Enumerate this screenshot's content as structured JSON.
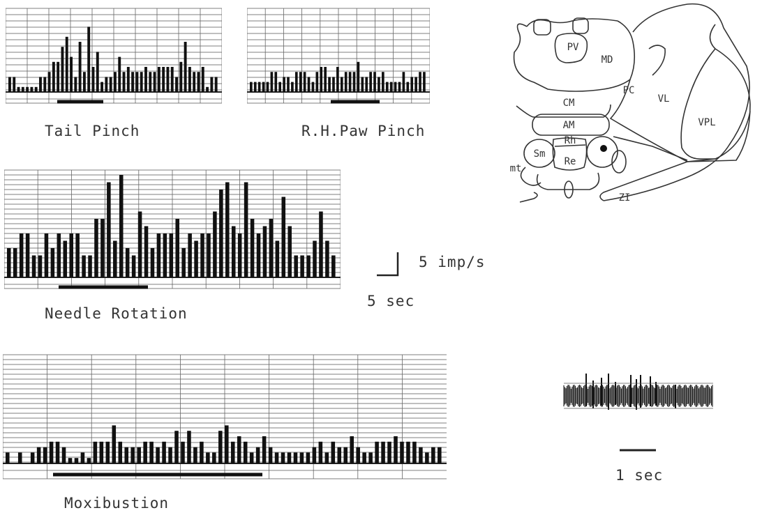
{
  "panels": [
    {
      "id": "tail",
      "label": "Tail Pinch",
      "rates": [
        3,
        3,
        1,
        1,
        1,
        1,
        1,
        3,
        3,
        4,
        6,
        6,
        9,
        11,
        7,
        3,
        10,
        4,
        13,
        5,
        8,
        2,
        3,
        3,
        4,
        7,
        4,
        5,
        4,
        4,
        4,
        5,
        4,
        4,
        5,
        5,
        5,
        5,
        3,
        6,
        10,
        5,
        4,
        4,
        5,
        1,
        3,
        3
      ]
    },
    {
      "id": "paw",
      "label": "R.H.Paw Pinch",
      "rates": [
        2,
        2,
        2,
        2,
        2,
        4,
        4,
        2,
        3,
        3,
        2,
        4,
        4,
        4,
        3,
        2,
        4,
        5,
        5,
        3,
        3,
        5,
        3,
        4,
        4,
        4,
        6,
        3,
        3,
        4,
        4,
        3,
        4,
        2,
        2,
        2,
        2,
        4,
        2,
        3,
        3,
        4,
        4
      ]
    },
    {
      "id": "needle",
      "label": "Needle Rotation",
      "rates": [
        4,
        4,
        6,
        6,
        3,
        3,
        6,
        4,
        6,
        5,
        6,
        6,
        3,
        3,
        8,
        8,
        13,
        5,
        14,
        4,
        3,
        9,
        7,
        4,
        6,
        6,
        6,
        8,
        4,
        6,
        5,
        6,
        6,
        9,
        12,
        13,
        7,
        6,
        13,
        8,
        6,
        7,
        8,
        5,
        11,
        7,
        3,
        3,
        3,
        5,
        9,
        5,
        3
      ]
    },
    {
      "id": "moxi",
      "label": "Moxibustion",
      "rates": [
        2,
        0,
        2,
        0,
        2,
        3,
        3,
        4,
        4,
        3,
        1,
        1,
        2,
        1,
        4,
        4,
        4,
        7,
        4,
        3,
        3,
        3,
        4,
        4,
        3,
        4,
        3,
        6,
        4,
        6,
        3,
        4,
        2,
        2,
        6,
        7,
        4,
        5,
        4,
        2,
        3,
        5,
        3,
        2,
        2,
        2,
        2,
        2,
        2,
        3,
        4,
        2,
        4,
        3,
        3,
        5,
        3,
        2,
        2,
        4,
        4,
        4,
        5,
        4,
        4,
        4,
        3,
        2,
        3,
        3
      ]
    }
  ],
  "scale": {
    "rate_label": "5 imp/s",
    "time_label": "5 sec"
  },
  "atlas": {
    "nuclei": [
      "PV",
      "MD",
      "PC",
      "VL",
      "CM",
      "AM",
      "VPL",
      "Sm",
      "Rh",
      "Re",
      "mt",
      "ZI"
    ]
  },
  "spike_trace": {
    "time_label": "1 sec"
  }
}
